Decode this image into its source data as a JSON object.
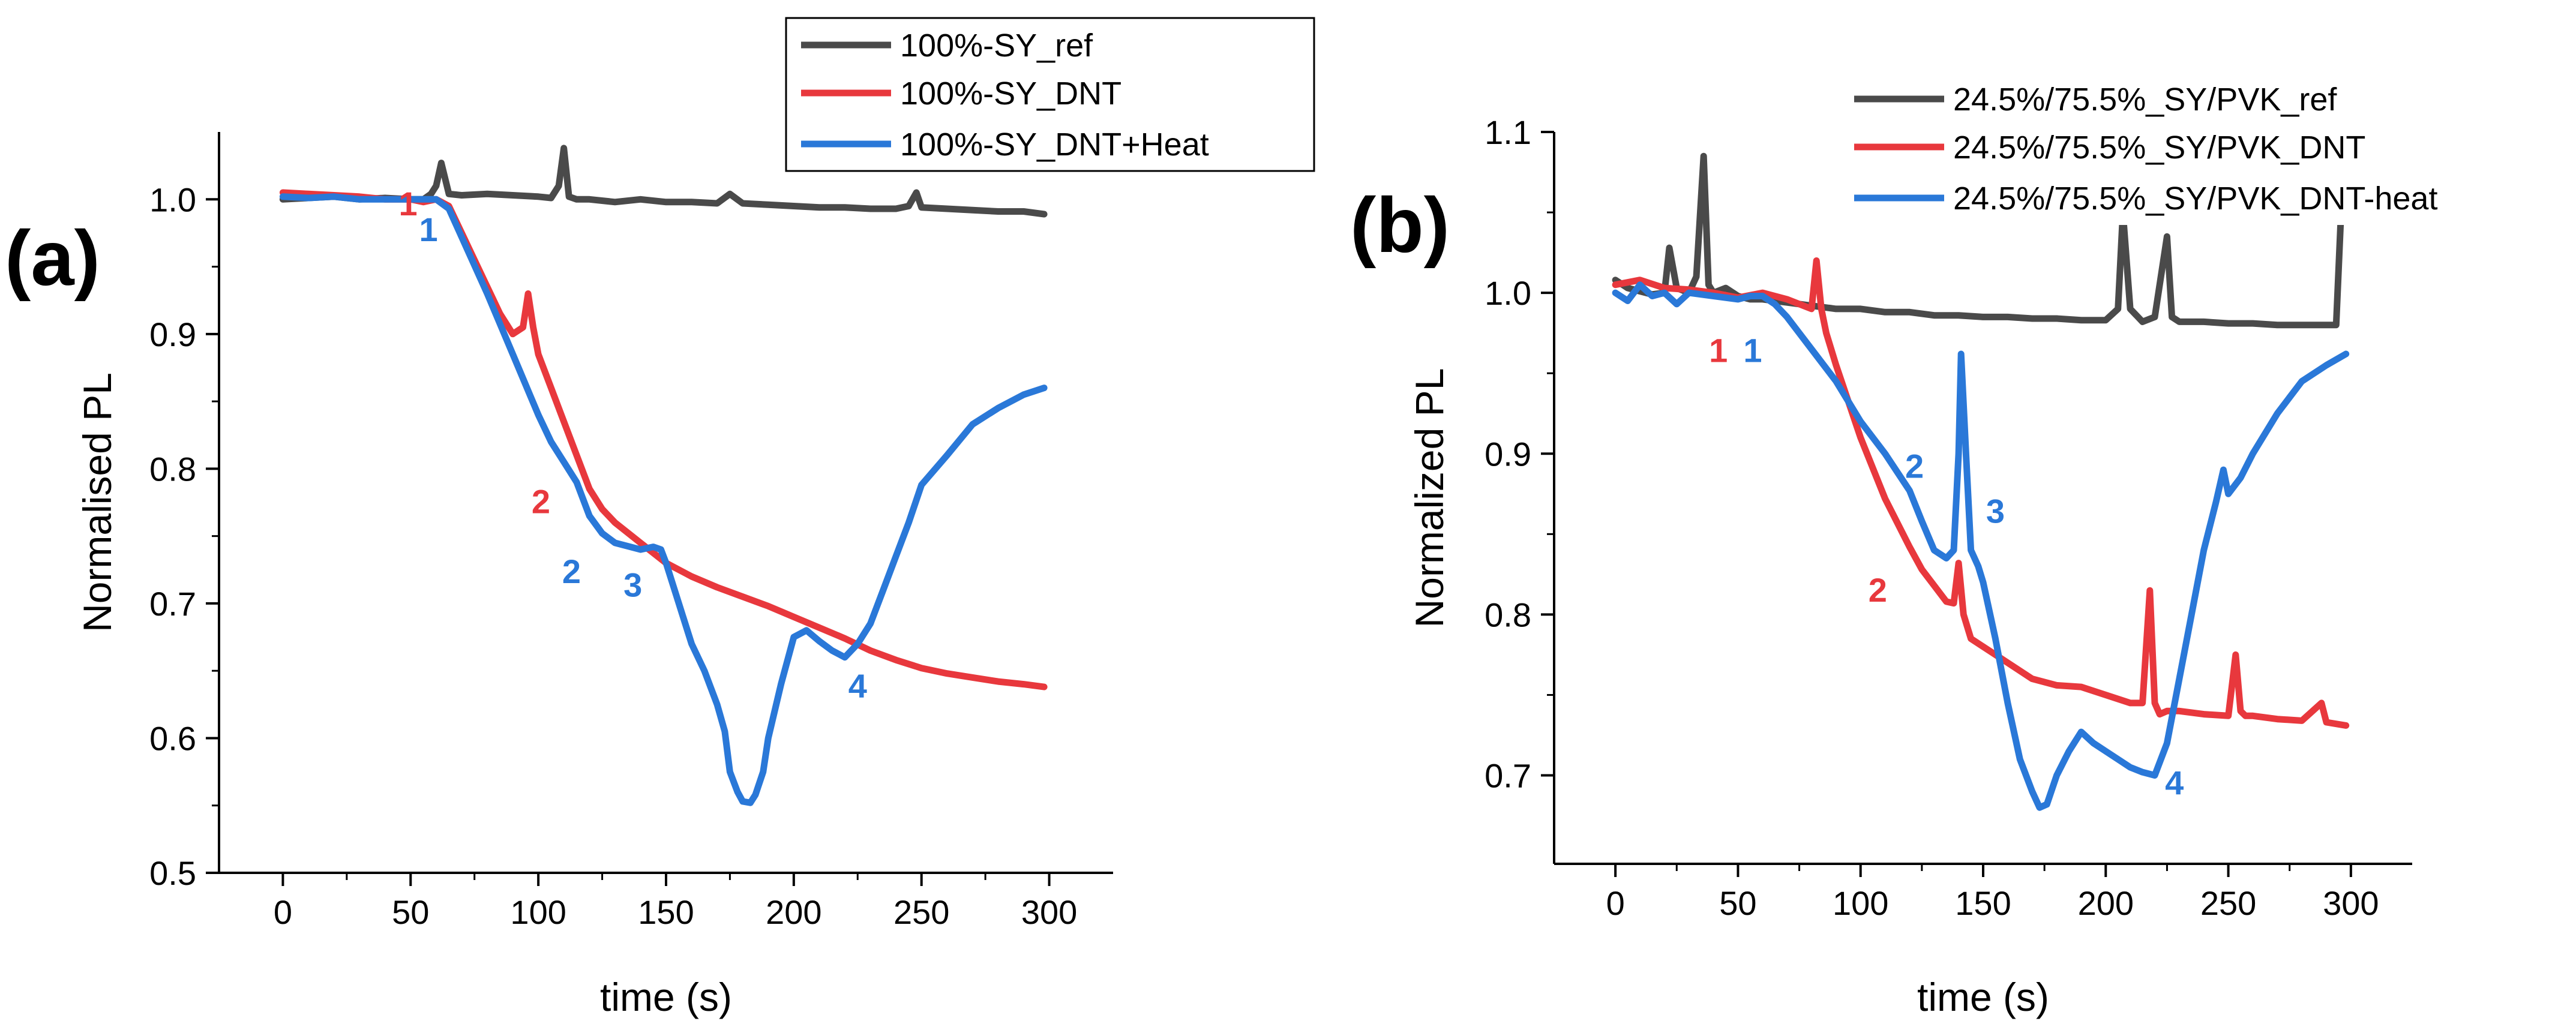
{
  "chart_data": [
    {
      "type": "line",
      "panel_label": "(a)",
      "xlabel": "time (s)",
      "ylabel": "Normalised PL",
      "xlim": [
        -25,
        325
      ],
      "ylim": [
        0.5,
        1.05
      ],
      "xticks": [
        0,
        50,
        100,
        150,
        200,
        250,
        300
      ],
      "yticks": [
        0.5,
        0.6,
        0.7,
        0.8,
        0.9,
        1.0
      ],
      "legend_position": "top-right",
      "series": [
        {
          "name": "100%-SY_ref",
          "color": "#4a4a4a",
          "x": [
            0,
            10,
            20,
            30,
            40,
            50,
            55,
            58,
            60,
            62,
            65,
            70,
            80,
            90,
            100,
            105,
            108,
            110,
            112,
            115,
            120,
            130,
            140,
            150,
            160,
            170,
            175,
            180,
            190,
            200,
            210,
            220,
            230,
            240,
            245,
            248,
            250,
            260,
            270,
            280,
            290,
            298
          ],
          "y": [
            1.0,
            1.001,
            1.002,
            1.0,
            1.001,
            1.0,
            1.0,
            1.004,
            1.01,
            1.027,
            1.004,
            1.003,
            1.004,
            1.003,
            1.002,
            1.001,
            1.01,
            1.038,
            1.002,
            1.0,
            1.0,
            0.998,
            1.0,
            0.998,
            0.998,
            0.997,
            1.004,
            0.997,
            0.996,
            0.995,
            0.994,
            0.994,
            0.993,
            0.993,
            0.995,
            1.005,
            0.994,
            0.993,
            0.992,
            0.991,
            0.991,
            0.989
          ]
        },
        {
          "name": "100%-SY_DNT",
          "color": "#e8383d",
          "x": [
            0,
            10,
            20,
            30,
            40,
            50,
            55,
            60,
            65,
            70,
            75,
            80,
            85,
            90,
            94,
            96,
            98,
            100,
            105,
            110,
            115,
            120,
            125,
            130,
            140,
            150,
            160,
            170,
            180,
            190,
            200,
            210,
            220,
            230,
            240,
            250,
            260,
            270,
            280,
            290,
            298
          ],
          "y": [
            1.005,
            1.004,
            1.003,
            1.002,
            1.0,
            1.0,
            0.998,
            1.0,
            0.995,
            0.975,
            0.955,
            0.935,
            0.915,
            0.9,
            0.905,
            0.93,
            0.905,
            0.885,
            0.86,
            0.835,
            0.81,
            0.785,
            0.77,
            0.76,
            0.745,
            0.73,
            0.72,
            0.712,
            0.705,
            0.698,
            0.69,
            0.682,
            0.674,
            0.665,
            0.658,
            0.652,
            0.648,
            0.645,
            0.642,
            0.64,
            0.638
          ]
        },
        {
          "name": "100%-SY_DNT+Heat",
          "color": "#2a78d8",
          "x": [
            0,
            10,
            20,
            30,
            40,
            50,
            55,
            60,
            65,
            70,
            80,
            90,
            100,
            105,
            110,
            115,
            120,
            125,
            130,
            140,
            145,
            148,
            150,
            155,
            160,
            165,
            170,
            173,
            175,
            178,
            180,
            183,
            185,
            188,
            190,
            195,
            200,
            205,
            210,
            215,
            220,
            225,
            230,
            235,
            240,
            245,
            250,
            260,
            270,
            280,
            290,
            298
          ],
          "y": [
            1.002,
            1.001,
            1.002,
            1.0,
            1.0,
            1.0,
            1.0,
            1.0,
            0.993,
            0.972,
            0.93,
            0.885,
            0.84,
            0.82,
            0.805,
            0.79,
            0.765,
            0.752,
            0.745,
            0.74,
            0.742,
            0.74,
            0.73,
            0.7,
            0.67,
            0.65,
            0.625,
            0.605,
            0.575,
            0.56,
            0.553,
            0.552,
            0.558,
            0.575,
            0.6,
            0.64,
            0.675,
            0.68,
            0.672,
            0.665,
            0.66,
            0.67,
            0.685,
            0.71,
            0.735,
            0.76,
            0.788,
            0.81,
            0.833,
            0.845,
            0.855,
            0.86
          ]
        }
      ],
      "annotations": [
        {
          "text": "1",
          "color": "#e8383d",
          "x": 49,
          "y": 0.988
        },
        {
          "text": "1",
          "color": "#2a78d8",
          "x": 57,
          "y": 0.969
        },
        {
          "text": "2",
          "color": "#e8383d",
          "x": 101,
          "y": 0.767
        },
        {
          "text": "2",
          "color": "#2a78d8",
          "x": 113,
          "y": 0.715
        },
        {
          "text": "3",
          "color": "#2a78d8",
          "x": 137,
          "y": 0.705
        },
        {
          "text": "4",
          "color": "#2a78d8",
          "x": 225,
          "y": 0.63
        }
      ]
    },
    {
      "type": "line",
      "panel_label": "(b)",
      "xlabel": "time (s)",
      "ylabel": "Normalized PL",
      "xlim": [
        -25,
        325
      ],
      "ylim": [
        0.645,
        1.1
      ],
      "xticks": [
        0,
        50,
        100,
        150,
        200,
        250,
        300
      ],
      "yticks": [
        0.7,
        0.8,
        0.9,
        1.0,
        1.1
      ],
      "legend_position": "top-right",
      "series": [
        {
          "name": "24.5%/75.5%_SY/PVK_ref",
          "color": "#4a4a4a",
          "x": [
            0,
            5,
            10,
            15,
            20,
            22,
            25,
            30,
            33,
            36,
            38,
            40,
            45,
            50,
            55,
            60,
            70,
            80,
            90,
            100,
            110,
            120,
            130,
            140,
            150,
            160,
            170,
            180,
            190,
            200,
            205,
            207,
            210,
            215,
            220,
            225,
            227,
            230,
            240,
            250,
            260,
            270,
            280,
            290,
            294,
            296,
            298
          ],
          "y": [
            1.008,
            1.003,
            1.001,
            0.999,
            1.0,
            1.028,
            1.003,
            1.0,
            1.01,
            1.085,
            1.005,
            1.0,
            1.003,
            0.998,
            0.996,
            0.996,
            0.994,
            0.992,
            0.99,
            0.99,
            0.988,
            0.988,
            0.986,
            0.986,
            0.985,
            0.985,
            0.984,
            0.984,
            0.983,
            0.983,
            0.99,
            1.05,
            0.99,
            0.982,
            0.985,
            1.035,
            0.985,
            0.982,
            0.982,
            0.981,
            0.981,
            0.98,
            0.98,
            0.98,
            0.98,
            1.05,
            1.05
          ]
        },
        {
          "name": "24.5%/75.5%_SY/PVK_DNT",
          "color": "#e8383d",
          "x": [
            0,
            10,
            20,
            30,
            40,
            50,
            60,
            70,
            80,
            82,
            84,
            86,
            90,
            100,
            110,
            120,
            125,
            130,
            135,
            138,
            140,
            142,
            145,
            150,
            160,
            170,
            180,
            190,
            200,
            210,
            215,
            218,
            220,
            222,
            225,
            230,
            240,
            250,
            253,
            255,
            257,
            260,
            270,
            280,
            288,
            290,
            298
          ],
          "y": [
            1.005,
            1.008,
            1.003,
            1.002,
            1.0,
            0.997,
            1.0,
            0.996,
            0.99,
            1.02,
            0.99,
            0.975,
            0.955,
            0.91,
            0.872,
            0.842,
            0.828,
            0.818,
            0.808,
            0.807,
            0.832,
            0.8,
            0.785,
            0.78,
            0.77,
            0.76,
            0.756,
            0.755,
            0.75,
            0.745,
            0.745,
            0.815,
            0.745,
            0.738,
            0.74,
            0.74,
            0.738,
            0.737,
            0.775,
            0.74,
            0.737,
            0.737,
            0.735,
            0.734,
            0.745,
            0.733,
            0.731
          ]
        },
        {
          "name": "24.5%/75.5%_SY/PVK_DNT-heat",
          "color": "#2a78d8",
          "x": [
            0,
            5,
            10,
            15,
            20,
            25,
            30,
            40,
            50,
            55,
            60,
            65,
            70,
            80,
            90,
            100,
            110,
            120,
            125,
            130,
            135,
            138,
            140,
            141,
            143,
            145,
            148,
            150,
            155,
            160,
            165,
            170,
            173,
            176,
            180,
            185,
            190,
            195,
            200,
            205,
            210,
            215,
            220,
            225,
            230,
            235,
            240,
            245,
            248,
            250,
            255,
            260,
            270,
            280,
            290,
            298
          ],
          "y": [
            1.0,
            0.995,
            1.005,
            0.998,
            1.0,
            0.993,
            1.0,
            0.998,
            0.996,
            0.998,
            0.998,
            0.993,
            0.985,
            0.965,
            0.945,
            0.92,
            0.9,
            0.877,
            0.858,
            0.84,
            0.835,
            0.84,
            0.9,
            0.962,
            0.9,
            0.84,
            0.83,
            0.82,
            0.785,
            0.745,
            0.71,
            0.69,
            0.68,
            0.682,
            0.7,
            0.715,
            0.727,
            0.72,
            0.715,
            0.71,
            0.705,
            0.702,
            0.7,
            0.72,
            0.76,
            0.8,
            0.84,
            0.87,
            0.89,
            0.875,
            0.885,
            0.9,
            0.925,
            0.945,
            0.955,
            0.962
          ]
        }
      ],
      "annotations": [
        {
          "text": "1",
          "color": "#e8383d",
          "x": 42,
          "y": 0.957
        },
        {
          "text": "1",
          "color": "#2a78d8",
          "x": 56,
          "y": 0.957
        },
        {
          "text": "2",
          "color": "#2a78d8",
          "x": 122,
          "y": 0.885
        },
        {
          "text": "2",
          "color": "#e8383d",
          "x": 107,
          "y": 0.808
        },
        {
          "text": "3",
          "color": "#2a78d8",
          "x": 155,
          "y": 0.857
        },
        {
          "text": "4",
          "color": "#2a78d8",
          "x": 228,
          "y": 0.688
        }
      ]
    }
  ]
}
